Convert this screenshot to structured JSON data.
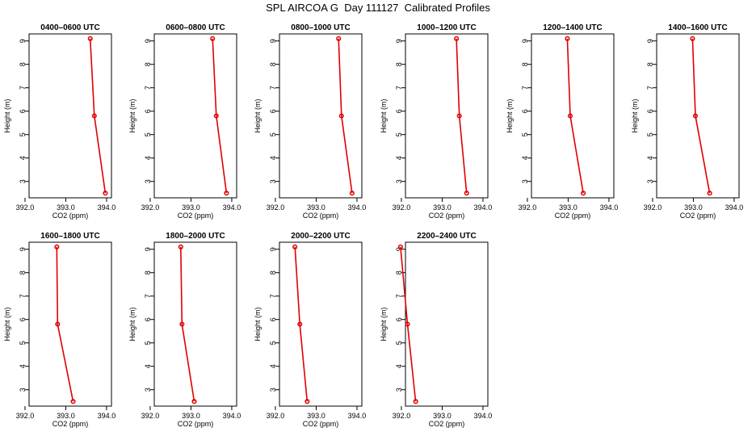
{
  "title": "SPL AIRCOA G  Day 111127  Calibrated Profiles",
  "colors": {
    "profile": "#e00000",
    "axis": "#000000",
    "background": "#ffffff"
  },
  "chart_data": [
    {
      "type": "line",
      "title": "0400–0600 UTC",
      "xlabel": "CO2 (ppm)",
      "ylabel": "Height (m)",
      "xlim": [
        392.0,
        394.0
      ],
      "ylim": [
        2.5,
        9.1
      ],
      "xticks": [
        "392.0",
        "393.0",
        "394.0"
      ],
      "yticks": [
        "3",
        "4",
        "5",
        "6",
        "7",
        "8",
        "9"
      ],
      "x": [
        393.6,
        393.7,
        393.97
      ],
      "y": [
        9.1,
        5.8,
        2.5
      ]
    },
    {
      "type": "line",
      "title": "0600–0800 UTC",
      "xlabel": "CO2 (ppm)",
      "ylabel": "Height (m)",
      "xlim": [
        392.0,
        394.0
      ],
      "ylim": [
        2.5,
        9.1
      ],
      "xticks": [
        "392.0",
        "393.0",
        "394.0"
      ],
      "yticks": [
        "3",
        "4",
        "5",
        "6",
        "7",
        "8",
        "9"
      ],
      "x": [
        393.53,
        393.62,
        393.87
      ],
      "y": [
        9.1,
        5.8,
        2.5
      ]
    },
    {
      "type": "line",
      "title": "0800–1000 UTC",
      "xlabel": "CO2 (ppm)",
      "ylabel": "Height (m)",
      "xlim": [
        392.0,
        394.0
      ],
      "ylim": [
        2.5,
        9.1
      ],
      "xticks": [
        "392.0",
        "393.0",
        "394.0"
      ],
      "yticks": [
        "3",
        "4",
        "5",
        "6",
        "7",
        "8",
        "9"
      ],
      "x": [
        393.55,
        393.62,
        393.88
      ],
      "y": [
        9.1,
        5.8,
        2.5
      ]
    },
    {
      "type": "line",
      "title": "1000–1200 UTC",
      "xlabel": "CO2 (ppm)",
      "ylabel": "Height (m)",
      "xlim": [
        392.0,
        394.0
      ],
      "ylim": [
        2.5,
        9.1
      ],
      "xticks": [
        "392.0",
        "393.0",
        "394.0"
      ],
      "yticks": [
        "3",
        "4",
        "5",
        "6",
        "7",
        "8",
        "9"
      ],
      "x": [
        393.35,
        393.42,
        393.6
      ],
      "y": [
        9.1,
        5.8,
        2.5
      ]
    },
    {
      "type": "line",
      "title": "1200–1400 UTC",
      "xlabel": "CO2 (ppm)",
      "ylabel": "Height (m)",
      "xlim": [
        392.0,
        394.0
      ],
      "ylim": [
        2.5,
        9.1
      ],
      "xticks": [
        "392.0",
        "393.0",
        "394.0"
      ],
      "yticks": [
        "3",
        "4",
        "5",
        "6",
        "7",
        "8",
        "9"
      ],
      "x": [
        392.98,
        393.05,
        393.37
      ],
      "y": [
        9.1,
        5.8,
        2.5
      ]
    },
    {
      "type": "line",
      "title": "1400–1600 UTC",
      "xlabel": "CO2 (ppm)",
      "ylabel": "Height (m)",
      "xlim": [
        392.0,
        394.0
      ],
      "ylim": [
        2.5,
        9.1
      ],
      "xticks": [
        "392.0",
        "393.0",
        "394.0"
      ],
      "yticks": [
        "3",
        "4",
        "5",
        "6",
        "7",
        "8",
        "9"
      ],
      "x": [
        392.98,
        393.05,
        393.4
      ],
      "y": [
        9.1,
        5.8,
        2.5
      ]
    },
    {
      "type": "line",
      "title": "1600–1800 UTC",
      "xlabel": "CO2 (ppm)",
      "ylabel": "Height (m)",
      "xlim": [
        392.0,
        394.0
      ],
      "ylim": [
        2.5,
        9.1
      ],
      "xticks": [
        "392.0",
        "393.0",
        "394.0"
      ],
      "yticks": [
        "3",
        "4",
        "5",
        "6",
        "7",
        "8",
        "9"
      ],
      "x": [
        392.78,
        392.8,
        393.18
      ],
      "y": [
        9.1,
        5.8,
        2.5
      ]
    },
    {
      "type": "line",
      "title": "1800–2000 UTC",
      "xlabel": "CO2 (ppm)",
      "ylabel": "Height (m)",
      "xlim": [
        392.0,
        394.0
      ],
      "ylim": [
        2.5,
        9.1
      ],
      "xticks": [
        "392.0",
        "393.0",
        "394.0"
      ],
      "yticks": [
        "3",
        "4",
        "5",
        "6",
        "7",
        "8",
        "9"
      ],
      "x": [
        392.75,
        392.78,
        393.08
      ],
      "y": [
        9.1,
        5.8,
        2.5
      ]
    },
    {
      "type": "line",
      "title": "2000–2200 UTC",
      "xlabel": "CO2 (ppm)",
      "ylabel": "Height (m)",
      "xlim": [
        392.0,
        394.0
      ],
      "ylim": [
        2.5,
        9.1
      ],
      "xticks": [
        "392.0",
        "393.0",
        "394.0"
      ],
      "yticks": [
        "3",
        "4",
        "5",
        "6",
        "7",
        "8",
        "9"
      ],
      "x": [
        392.48,
        392.6,
        392.78
      ],
      "y": [
        9.1,
        5.8,
        2.5
      ]
    },
    {
      "type": "line",
      "title": "2200–2400 UTC",
      "xlabel": "CO2 (ppm)",
      "ylabel": "Height (m)",
      "xlim": [
        392.0,
        394.0
      ],
      "ylim": [
        2.5,
        9.1
      ],
      "xticks": [
        "392.0",
        "393.0",
        "394.0"
      ],
      "yticks": [
        "3",
        "4",
        "5",
        "6",
        "7",
        "8",
        "9"
      ],
      "x": [
        391.98,
        392.15,
        392.35
      ],
      "y": [
        9.1,
        5.8,
        2.5
      ]
    }
  ]
}
